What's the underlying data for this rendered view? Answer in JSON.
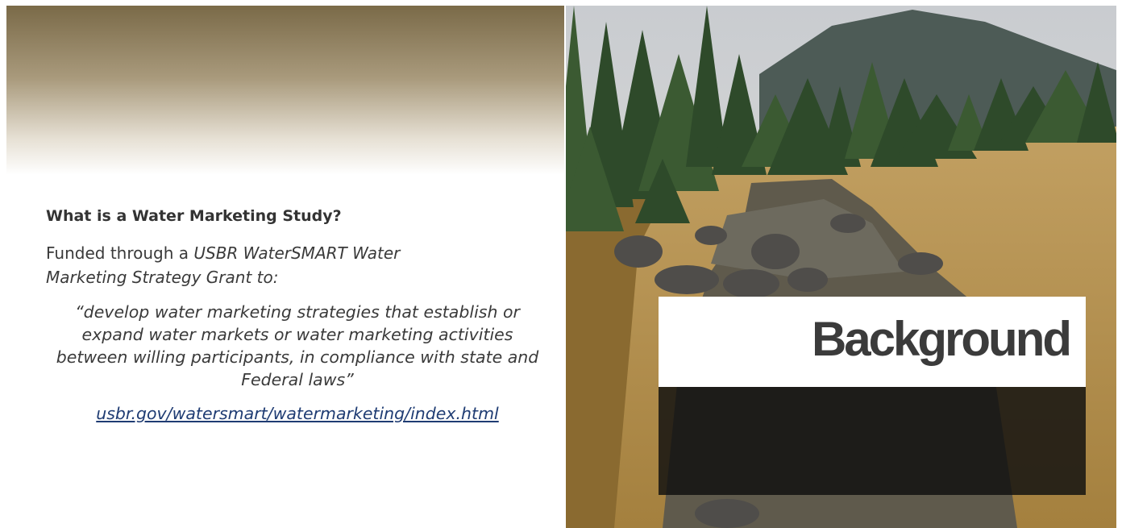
{
  "slide": {
    "heading": "What is a Water Marketing Study?",
    "intro": {
      "text": "Funded through a",
      "emphasis": "USBR WaterSMART Water Marketing Strategy Grant to:"
    },
    "quote": "“develop water marketing strategies that establish or expand water markets or water marketing activities between willing participants, in compliance with state and Federal laws”",
    "link": "usbr.gov/watersmart/watermarketing/index.html",
    "title": "Background"
  }
}
